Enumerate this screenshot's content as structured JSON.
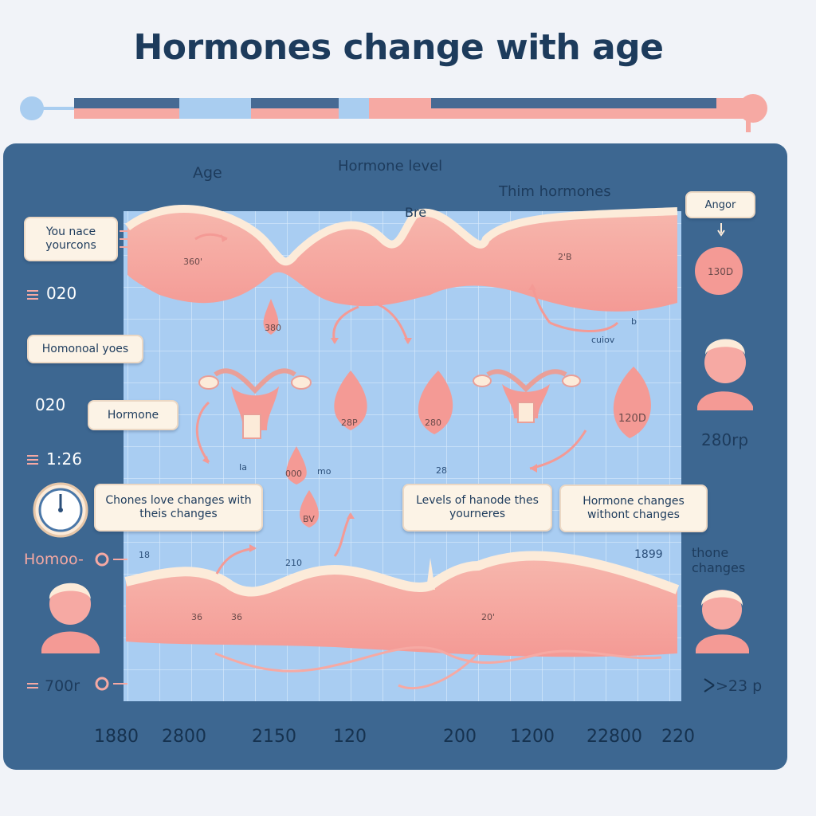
{
  "title": "Hormones change with age",
  "header_labels": {
    "age": "Age",
    "hormone_level": "Hormone level",
    "bre": "Bre",
    "thim_hormones": "Thim hormones"
  },
  "callouts": {
    "you_nace": "You nace yourcons",
    "homonoal_yoes": "Homonoal yoes",
    "hormone": "Hormone",
    "chones_love": "Chones love changes with theis changes",
    "levels_of_hanode": "Levels of hanode thes yourneres",
    "hormone_changes_withont": "Hormone changes withont changes",
    "angor": "Angor"
  },
  "side_labels": {
    "homoo": "Homoo-",
    "thone_changes": "thone changes",
    "right_value": "280rp",
    "right_bottom": ">23 p",
    "left_bottom": "700r"
  },
  "left_ticks": [
    "020",
    "020",
    "1:26"
  ],
  "bottom_ticks": [
    "1880",
    "2800",
    "2150",
    "120",
    "200",
    "1200",
    "22800",
    "220"
  ],
  "marker_labels": {
    "drop1": "360'",
    "drop2": "380",
    "drop3": "28P",
    "drop4": "280",
    "drop5": "120D",
    "drop6": "000",
    "drop7": "BV",
    "circle": "130D",
    "small1": "2'B",
    "small2": "Ia",
    "small3": "mo",
    "small4": "28",
    "small5": "18",
    "small6": "210",
    "small7": "1899",
    "small8": "36",
    "small9": "36",
    "small10": "20'",
    "cuiov": "cuiov",
    "b": "b"
  },
  "colors": {
    "panel": "#3d6791",
    "grid_bg": "#a9cdf2",
    "wave_pink": "#f6a9a3",
    "wave_cream": "#fcebd9",
    "accent_blue": "#7fb6ea",
    "accent_pink": "#f7a39c",
    "dark_blue": "#3d6791"
  }
}
